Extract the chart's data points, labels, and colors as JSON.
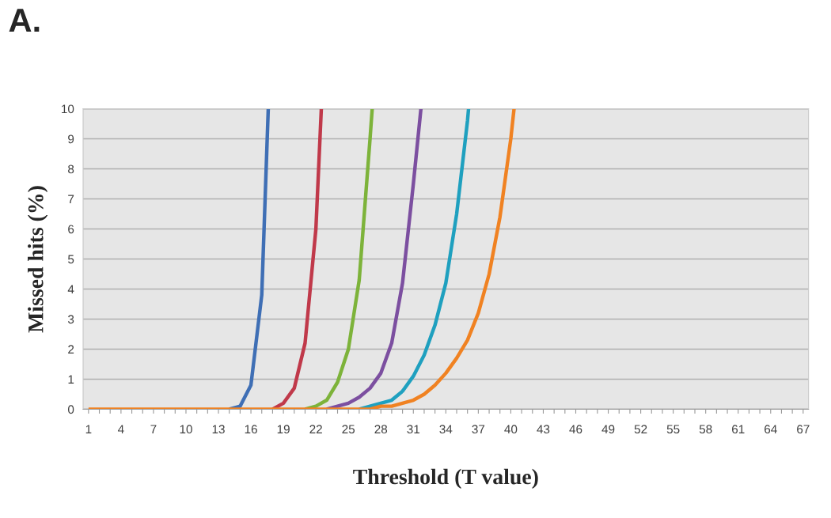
{
  "chart_data": {
    "type": "line",
    "title": "A.",
    "xlabel": "Threshold (T value)",
    "ylabel": "Missed hits (%)",
    "xlim": [
      0.5,
      67.5
    ],
    "ylim": [
      0,
      10
    ],
    "yticks": [
      0,
      1,
      2,
      3,
      4,
      5,
      6,
      7,
      8,
      9,
      10
    ],
    "xticks": [
      1,
      {
        "value": 2,
        "label": null
      },
      {
        "value": 3,
        "label": null
      },
      4,
      {
        "value": 5,
        "label": null
      },
      {
        "value": 6,
        "label": null
      },
      7,
      {
        "value": 8,
        "label": null
      },
      {
        "value": 9,
        "label": null
      },
      10,
      {
        "value": 11,
        "label": null
      },
      {
        "value": 12,
        "label": null
      },
      13,
      {
        "value": 14,
        "label": null
      },
      {
        "value": 15,
        "label": null
      },
      16,
      {
        "value": 17,
        "label": null
      },
      {
        "value": 18,
        "label": null
      },
      19,
      {
        "value": 20,
        "label": null
      },
      {
        "value": 21,
        "label": null
      },
      22,
      {
        "value": 23,
        "label": null
      },
      {
        "value": 24,
        "label": null
      },
      25,
      {
        "value": 26,
        "label": null
      },
      {
        "value": 27,
        "label": null
      },
      28,
      {
        "value": 29,
        "label": null
      },
      {
        "value": 30,
        "label": null
      },
      31,
      {
        "value": 32,
        "label": null
      },
      {
        "value": 33,
        "label": null
      },
      34,
      {
        "value": 35,
        "label": null
      },
      {
        "value": 36,
        "label": null
      },
      37,
      {
        "value": 38,
        "label": null
      },
      {
        "value": 39,
        "label": null
      },
      40,
      {
        "value": 41,
        "label": null
      },
      {
        "value": 42,
        "label": null
      },
      43,
      {
        "value": 44,
        "label": null
      },
      {
        "value": 45,
        "label": null
      },
      46,
      {
        "value": 47,
        "label": null
      },
      {
        "value": 48,
        "label": null
      },
      49,
      {
        "value": 50,
        "label": null
      },
      {
        "value": 51,
        "label": null
      },
      52,
      {
        "value": 53,
        "label": null
      },
      {
        "value": 54,
        "label": null
      },
      55,
      {
        "value": 56,
        "label": null
      },
      {
        "value": 57,
        "label": null
      },
      58,
      {
        "value": 59,
        "label": null
      },
      {
        "value": 60,
        "label": null
      },
      61,
      {
        "value": 62,
        "label": null
      },
      {
        "value": 63,
        "label": null
      },
      64,
      {
        "value": 65,
        "label": null
      },
      {
        "value": 66,
        "label": null
      },
      67
    ],
    "grid": "y",
    "marker": "none",
    "line_style": "solid",
    "legend": false,
    "series": [
      {
        "color": "#3f6fb5",
        "x": [
          14,
          15,
          16,
          17,
          17.6
        ],
        "values": [
          0,
          0.1,
          0.8,
          3.8,
          10
        ]
      },
      {
        "color": "#c0394a",
        "x": [
          18,
          19,
          20,
          21,
          22,
          22.5
        ],
        "values": [
          0,
          0.2,
          0.7,
          2.2,
          6.0,
          10
        ]
      },
      {
        "color": "#7db33a",
        "x": [
          21,
          22,
          23,
          24,
          25,
          26,
          27,
          27.2
        ],
        "values": [
          0,
          0.1,
          0.3,
          0.9,
          2.0,
          4.3,
          9.0,
          10
        ]
      },
      {
        "color": "#7c4fa0",
        "x": [
          23,
          24,
          25,
          26,
          27,
          28,
          29,
          30,
          31,
          31.7
        ],
        "values": [
          0,
          0.1,
          0.2,
          0.4,
          0.7,
          1.2,
          2.2,
          4.2,
          7.5,
          10
        ]
      },
      {
        "color": "#1fa0bf",
        "x": [
          26,
          27,
          28,
          29,
          30,
          31,
          32,
          33,
          34,
          35,
          36,
          36.1
        ],
        "values": [
          0,
          0.1,
          0.2,
          0.3,
          0.6,
          1.1,
          1.8,
          2.8,
          4.2,
          6.5,
          9.6,
          10
        ]
      },
      {
        "color": "#f08222",
        "x": [
          1,
          2,
          3,
          4,
          5,
          6,
          7,
          8,
          9,
          10,
          11,
          12,
          13,
          14,
          15,
          16,
          17,
          18,
          19,
          20,
          21,
          22,
          23,
          24,
          25,
          26,
          27,
          28,
          29,
          30,
          31,
          32,
          33,
          34,
          35,
          36,
          37,
          38,
          39,
          40,
          40.3
        ],
        "values": [
          0,
          0,
          0,
          0,
          0,
          0,
          0,
          0,
          0,
          0,
          0,
          0,
          0,
          0,
          0,
          0,
          0,
          0,
          0,
          0,
          0,
          0,
          0,
          0,
          0,
          0,
          0,
          0.1,
          0.1,
          0.2,
          0.3,
          0.5,
          0.8,
          1.2,
          1.7,
          2.3,
          3.2,
          4.5,
          6.4,
          9.0,
          10
        ]
      }
    ]
  }
}
